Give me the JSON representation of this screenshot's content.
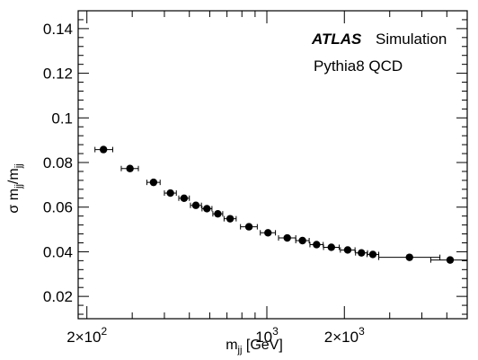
{
  "chart_data": {
    "type": "scatter",
    "xlabel_main": "m",
    "xlabel_sub": "jj",
    "xlabel_unit": " [GeV]",
    "ylabel_parts": [
      "σ m",
      "jj",
      "/m",
      "jj"
    ],
    "annotation_brand": "ATLAS",
    "annotation_brand_suffix": "Simulation",
    "annotation_generator": "Pythia8 QCD",
    "x_scale": "log",
    "xlim": [
      185,
      6000
    ],
    "ylim": [
      0.01,
      0.148
    ],
    "y_ticks": [
      0.02,
      0.04,
      0.06,
      0.08,
      0.1,
      0.12,
      0.14
    ],
    "y_tick_labels": [
      "0.02",
      "0.04",
      "0.06",
      "0.08",
      "0.1",
      "0.12",
      "0.14"
    ],
    "x_tick_labels": [
      {
        "value": 200,
        "base": "2×10",
        "exp": "2"
      },
      {
        "value": 1000,
        "base": "10",
        "exp": "3"
      },
      {
        "value": 2000,
        "base": "2×10",
        "exp": "3"
      }
    ],
    "points": [
      {
        "x": 232,
        "y": 0.0858,
        "xlo": 215,
        "xhi": 252
      },
      {
        "x": 294,
        "y": 0.0773,
        "xlo": 272,
        "xhi": 317
      },
      {
        "x": 363,
        "y": 0.0711,
        "xlo": 342,
        "xhi": 385
      },
      {
        "x": 422,
        "y": 0.0663,
        "xlo": 400,
        "xhi": 445
      },
      {
        "x": 477,
        "y": 0.064,
        "xlo": 455,
        "xhi": 500
      },
      {
        "x": 530,
        "y": 0.0608,
        "xlo": 505,
        "xhi": 557
      },
      {
        "x": 585,
        "y": 0.0593,
        "xlo": 560,
        "xhi": 612
      },
      {
        "x": 645,
        "y": 0.057,
        "xlo": 617,
        "xhi": 674
      },
      {
        "x": 720,
        "y": 0.0548,
        "xlo": 682,
        "xhi": 760
      },
      {
        "x": 852,
        "y": 0.0512,
        "xlo": 790,
        "xhi": 918
      },
      {
        "x": 1010,
        "y": 0.0485,
        "xlo": 943,
        "xhi": 1080
      },
      {
        "x": 1200,
        "y": 0.0462,
        "xlo": 1110,
        "xhi": 1295
      },
      {
        "x": 1375,
        "y": 0.045,
        "xlo": 1295,
        "xhi": 1460
      },
      {
        "x": 1560,
        "y": 0.0432,
        "xlo": 1470,
        "xhi": 1655
      },
      {
        "x": 1780,
        "y": 0.042,
        "xlo": 1660,
        "xhi": 1910
      },
      {
        "x": 2060,
        "y": 0.0408,
        "xlo": 1930,
        "xhi": 2200
      },
      {
        "x": 2330,
        "y": 0.0395,
        "xlo": 2210,
        "xhi": 2460
      },
      {
        "x": 2580,
        "y": 0.0388,
        "xlo": 2450,
        "xhi": 2720
      },
      {
        "x": 3580,
        "y": 0.0375,
        "xlo": 2720,
        "xhi": 4700
      },
      {
        "x": 5150,
        "y": 0.0363,
        "xlo": 4330,
        "xhi": 6000
      }
    ]
  }
}
